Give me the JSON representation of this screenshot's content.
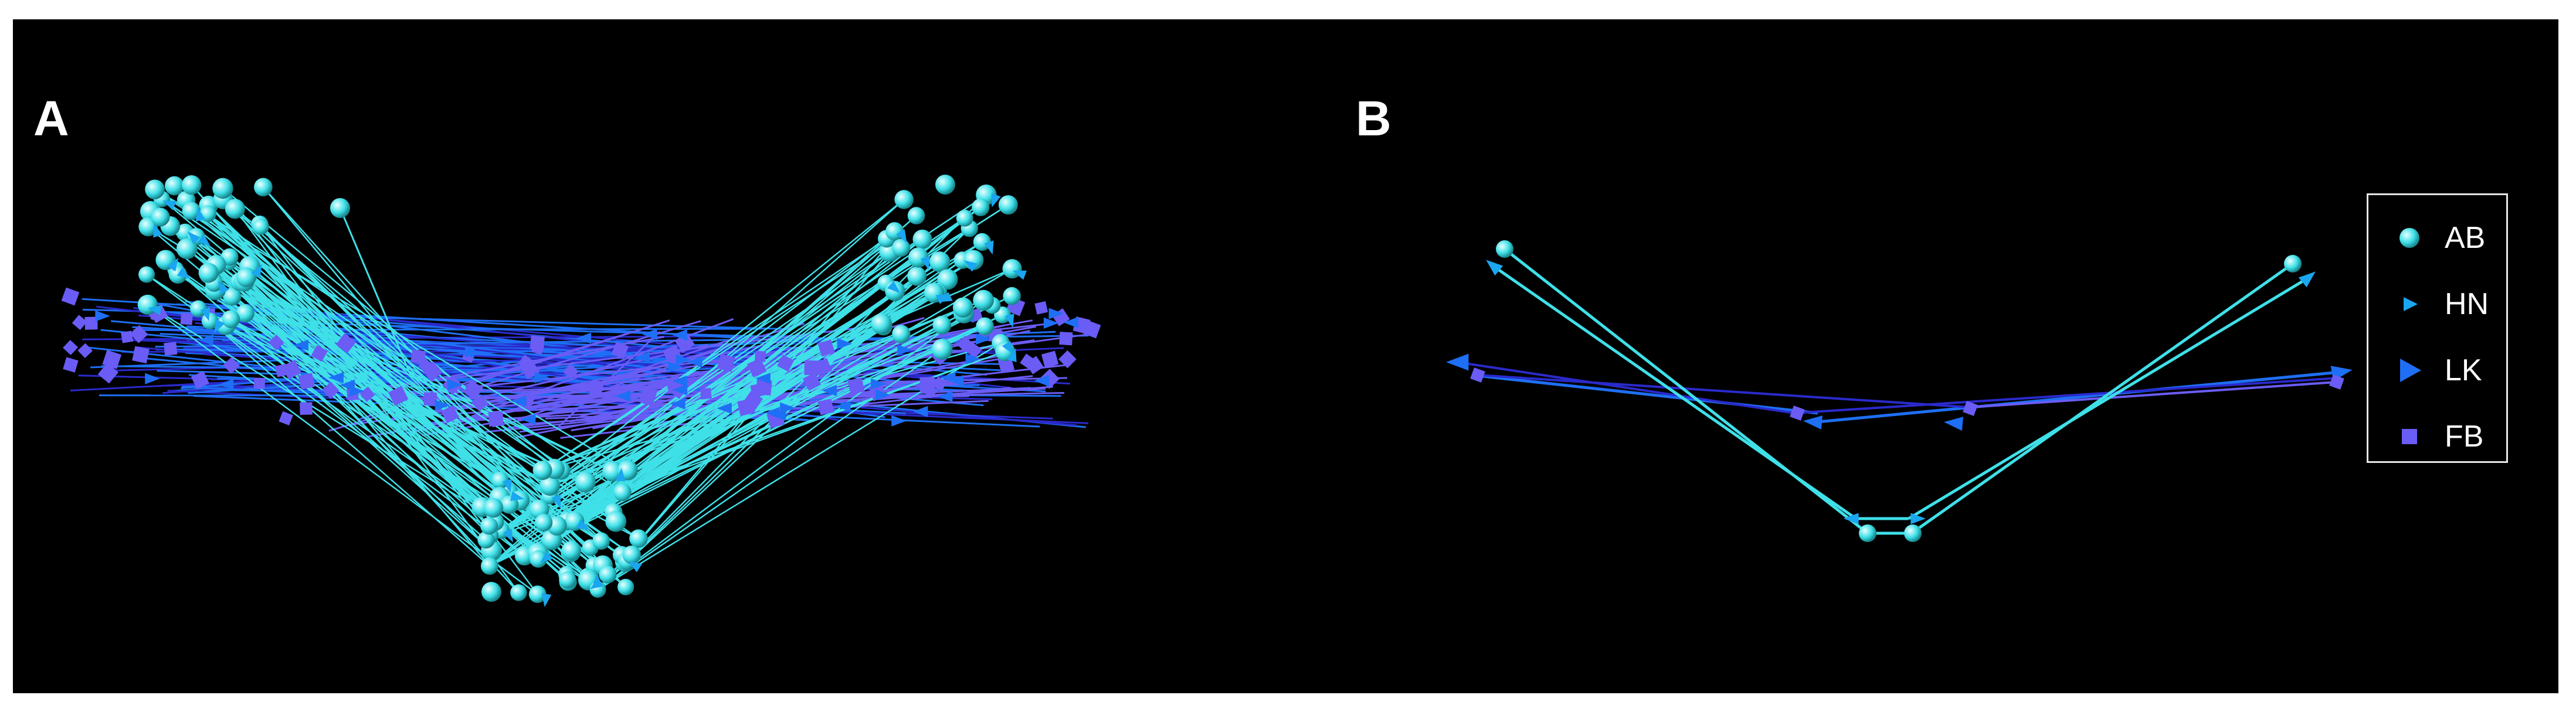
{
  "panels": {
    "a_label": "A",
    "b_label": "B"
  },
  "legend": {
    "items": [
      {
        "label": "AB",
        "marker": "sphere",
        "color": "#3fe0e8"
      },
      {
        "label": "HN",
        "marker": "small-arrowhead",
        "color": "#1aa6f0"
      },
      {
        "label": "LK",
        "marker": "large-arrowhead",
        "color": "#1e6ff5"
      },
      {
        "label": "FB",
        "marker": "square",
        "color": "#6a5cf5"
      }
    ]
  },
  "colors": {
    "background": "#000000",
    "ab": "#3fe0e8",
    "hn": "#1aa6f0",
    "lk": "#1e6ff5",
    "fb": "#6a5cf5",
    "line_dark": "#2a2acc"
  }
}
